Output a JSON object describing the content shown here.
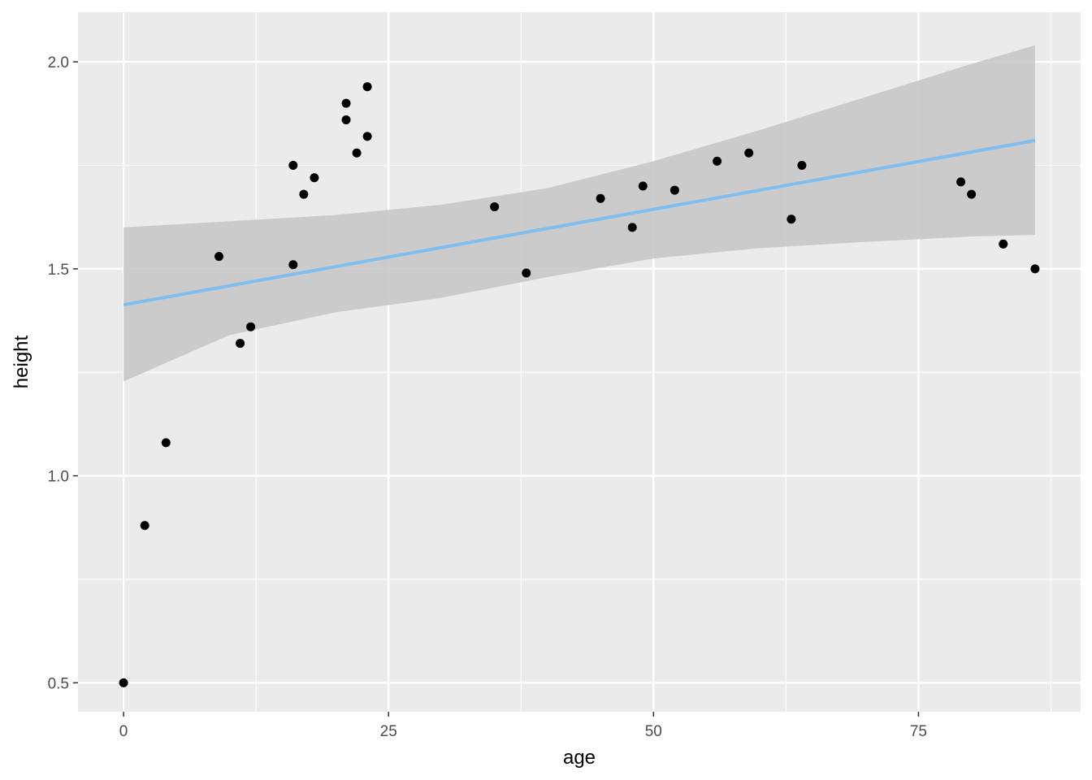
{
  "chart_data": {
    "type": "scatter",
    "title": "",
    "xlabel": "age",
    "ylabel": "height",
    "xlim": [
      -4.3,
      90.3
    ],
    "ylim": [
      0.43,
      2.12
    ],
    "x_ticks": [
      0,
      25,
      50,
      75
    ],
    "x_tick_labels": [
      "0",
      "25",
      "50",
      "75"
    ],
    "y_ticks": [
      0.5,
      1.0,
      1.5,
      2.0
    ],
    "y_tick_labels": [
      "0.5",
      "1.0",
      "1.5",
      "2.0"
    ],
    "grid": true,
    "legend": "none",
    "points": [
      {
        "x": 0,
        "y": 0.5
      },
      {
        "x": 2,
        "y": 0.88
      },
      {
        "x": 4,
        "y": 1.08
      },
      {
        "x": 9,
        "y": 1.53
      },
      {
        "x": 11,
        "y": 1.32
      },
      {
        "x": 12,
        "y": 1.36
      },
      {
        "x": 16,
        "y": 1.75
      },
      {
        "x": 16,
        "y": 1.51
      },
      {
        "x": 17,
        "y": 1.68
      },
      {
        "x": 18,
        "y": 1.72
      },
      {
        "x": 21,
        "y": 1.9
      },
      {
        "x": 21,
        "y": 1.86
      },
      {
        "x": 22,
        "y": 1.78
      },
      {
        "x": 23,
        "y": 1.94
      },
      {
        "x": 23,
        "y": 1.82
      },
      {
        "x": 35,
        "y": 1.65
      },
      {
        "x": 38,
        "y": 1.49
      },
      {
        "x": 45,
        "y": 1.67
      },
      {
        "x": 48,
        "y": 1.6
      },
      {
        "x": 49,
        "y": 1.7
      },
      {
        "x": 52,
        "y": 1.69
      },
      {
        "x": 56,
        "y": 1.76
      },
      {
        "x": 59,
        "y": 1.78
      },
      {
        "x": 63,
        "y": 1.62
      },
      {
        "x": 64,
        "y": 1.75
      },
      {
        "x": 79,
        "y": 1.71
      },
      {
        "x": 80,
        "y": 1.68
      },
      {
        "x": 83,
        "y": 1.56
      },
      {
        "x": 86,
        "y": 1.5
      }
    ],
    "fit_line": {
      "x": [
        0,
        86
      ],
      "y": [
        1.413,
        1.81
      ],
      "color": "#7fbfef"
    },
    "confidence_band": {
      "x": [
        0,
        10,
        20,
        30,
        40,
        50,
        60,
        70,
        80,
        86
      ],
      "upper": [
        1.6,
        1.615,
        1.63,
        1.655,
        1.695,
        1.76,
        1.835,
        1.915,
        1.995,
        2.04
      ],
      "lower": [
        1.228,
        1.34,
        1.395,
        1.43,
        1.48,
        1.525,
        1.55,
        1.565,
        1.578,
        1.582
      ],
      "color": "#c8c8c8"
    },
    "colors": {
      "panel_background": "#ebebeb",
      "grid": "#ffffff",
      "point": "#000000"
    }
  }
}
